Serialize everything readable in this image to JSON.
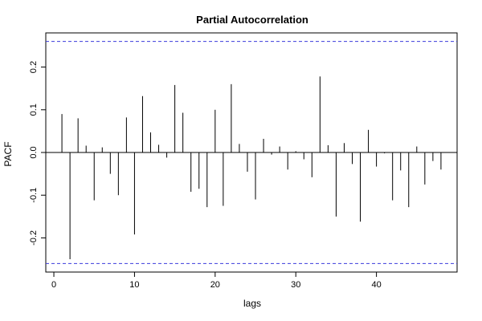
{
  "chart_data": {
    "type": "bar",
    "title": "Partial Autocorrelation",
    "xlabel": "lags",
    "ylabel": "PACF",
    "xlim": [
      -1,
      50
    ],
    "ylim": [
      -0.28,
      0.28
    ],
    "xticks": [
      0,
      10,
      20,
      30,
      40
    ],
    "yticks": [
      -0.2,
      -0.1,
      0.0,
      0.1,
      0.2
    ],
    "ytick_labels": [
      "-0.2",
      "-0.1",
      "0.0",
      "0.1",
      "0.2"
    ],
    "confidence_bound": 0.26,
    "grid": false,
    "series": [
      {
        "values": [
          {
            "x": 1,
            "y": 0.09
          },
          {
            "x": 2,
            "y": -0.25
          },
          {
            "x": 3,
            "y": 0.08
          },
          {
            "x": 4,
            "y": 0.016
          },
          {
            "x": 5,
            "y": -0.112
          },
          {
            "x": 6,
            "y": 0.012
          },
          {
            "x": 7,
            "y": -0.05
          },
          {
            "x": 8,
            "y": -0.1
          },
          {
            "x": 9,
            "y": 0.082
          },
          {
            "x": 10,
            "y": -0.192
          },
          {
            "x": 11,
            "y": 0.132
          },
          {
            "x": 12,
            "y": 0.047
          },
          {
            "x": 13,
            "y": 0.018
          },
          {
            "x": 14,
            "y": -0.012
          },
          {
            "x": 15,
            "y": 0.158
          },
          {
            "x": 16,
            "y": 0.093
          },
          {
            "x": 17,
            "y": -0.092
          },
          {
            "x": 18,
            "y": -0.085
          },
          {
            "x": 19,
            "y": -0.128
          },
          {
            "x": 20,
            "y": 0.1
          },
          {
            "x": 21,
            "y": -0.125
          },
          {
            "x": 22,
            "y": 0.16
          },
          {
            "x": 23,
            "y": 0.02
          },
          {
            "x": 24,
            "y": -0.045
          },
          {
            "x": 25,
            "y": -0.11
          },
          {
            "x": 26,
            "y": 0.032
          },
          {
            "x": 27,
            "y": -0.005
          },
          {
            "x": 28,
            "y": 0.014
          },
          {
            "x": 29,
            "y": -0.04
          },
          {
            "x": 30,
            "y": 0.003
          },
          {
            "x": 31,
            "y": -0.016
          },
          {
            "x": 32,
            "y": -0.058
          },
          {
            "x": 33,
            "y": 0.178
          },
          {
            "x": 34,
            "y": 0.017
          },
          {
            "x": 35,
            "y": -0.15
          },
          {
            "x": 36,
            "y": 0.022
          },
          {
            "x": 37,
            "y": -0.027
          },
          {
            "x": 38,
            "y": -0.162
          },
          {
            "x": 39,
            "y": 0.053
          },
          {
            "x": 40,
            "y": -0.033
          },
          {
            "x": 41,
            "y": -0.002
          },
          {
            "x": 42,
            "y": -0.112
          },
          {
            "x": 43,
            "y": -0.042
          },
          {
            "x": 44,
            "y": -0.128
          },
          {
            "x": 45,
            "y": 0.014
          },
          {
            "x": 46,
            "y": -0.075
          },
          {
            "x": 47,
            "y": -0.02
          },
          {
            "x": 48,
            "y": -0.04
          }
        ]
      }
    ],
    "colors": {
      "bars": "#000000",
      "confidence_lines": "#3b3bdc",
      "axes": "#000000"
    }
  }
}
